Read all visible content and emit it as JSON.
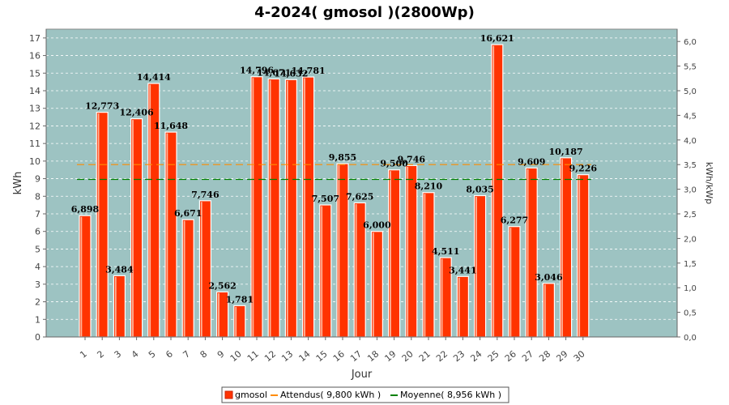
{
  "chart_data": {
    "type": "bar",
    "title": "4-2024( gmosol )(2800Wp)",
    "xlabel": "Jour",
    "ylabel": "kWh",
    "ylabel_right": "kWh/kWp",
    "ylim": [
      0,
      17.5
    ],
    "ylim_right": [
      0,
      6.25
    ],
    "y_ticks": [
      0,
      1,
      2,
      3,
      4,
      5,
      6,
      7,
      8,
      9,
      10,
      11,
      12,
      13,
      14,
      15,
      16,
      17
    ],
    "y_ticks_right": [
      "0,0",
      "0,5",
      "1,0",
      "1,5",
      "2,0",
      "2,5",
      "3,0",
      "3,5",
      "4,0",
      "4,5",
      "5,0",
      "5,5",
      "6,0"
    ],
    "grid": true,
    "legend_position": "bottom",
    "categories": [
      "1",
      "2",
      "3",
      "4",
      "5",
      "6",
      "7",
      "8",
      "9",
      "10",
      "11",
      "12",
      "13",
      "14",
      "15",
      "16",
      "17",
      "18",
      "19",
      "20",
      "21",
      "22",
      "23",
      "24",
      "25",
      "26",
      "27",
      "28",
      "29",
      "30"
    ],
    "series": [
      {
        "name": "gmosol",
        "values": [
          6.898,
          12.773,
          3.484,
          12.406,
          14.414,
          11.648,
          6.671,
          7.746,
          2.562,
          1.781,
          14.796,
          14.671,
          14.632,
          14.781,
          7.507,
          9.855,
          7.625,
          6.0,
          9.5,
          9.746,
          8.21,
          4.511,
          3.441,
          8.035,
          16.621,
          6.277,
          9.609,
          3.046,
          10.187,
          9.226
        ],
        "labels": [
          "6,898",
          "12,773",
          "3,484",
          "12,406",
          "14,414",
          "11,648",
          "6,671",
          "7,746",
          "2,562",
          "1,781",
          "14,796",
          "14,671",
          "14,632",
          "14,781",
          "7,507",
          "9,855",
          "7,625",
          "6,000",
          "9,500",
          "9,746",
          "8,210",
          "4,511",
          "3,441",
          "8,035",
          "16,621",
          "6,277",
          "9,609",
          "3,046",
          "10,187",
          "9,226"
        ],
        "color": "#ff3300"
      }
    ],
    "reference_lines": [
      {
        "name": "Attendus( 9,800 kWh )",
        "value": 9.8,
        "color": "#ff8c00"
      },
      {
        "name": "Moyenne( 8,956 kWh )",
        "value": 8.956,
        "color": "#008000"
      }
    ],
    "colors": {
      "plot_bg": "#9dc3c2",
      "grid": "#ffffff",
      "bar_fill": "#ff3300",
      "bar_edge": "#cc2200"
    }
  }
}
